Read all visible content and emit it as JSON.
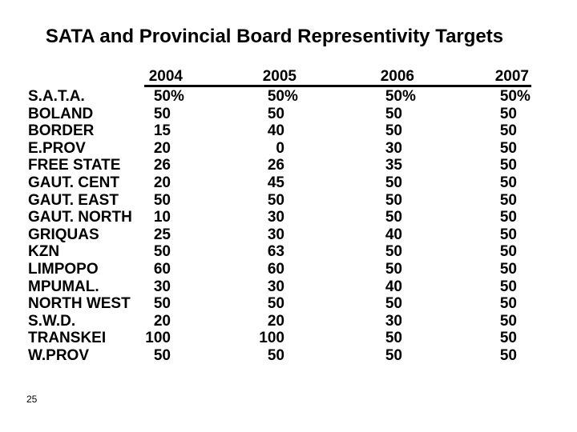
{
  "slide": {
    "title": "SATA and Provincial Board Representivity Targets",
    "page_number": "25"
  },
  "table": {
    "columns": [
      "2004",
      "2005",
      "2006",
      "2007"
    ],
    "rows": [
      {
        "label": "S.A.T.A.",
        "values": [
          "50%",
          "50%",
          "50%",
          "50%"
        ]
      },
      {
        "label": "BOLAND",
        "values": [
          "50",
          "50",
          "50",
          "50"
        ]
      },
      {
        "label": "BORDER",
        "values": [
          "15",
          "40",
          "50",
          "50"
        ]
      },
      {
        "label": "E.PROV",
        "values": [
          "20",
          "0",
          "30",
          "50"
        ]
      },
      {
        "label": "FREE STATE",
        "values": [
          "26",
          "26",
          "35",
          "50"
        ]
      },
      {
        "label": "GAUT. CENT",
        "values": [
          "20",
          "45",
          "50",
          "50"
        ]
      },
      {
        "label": "GAUT. EAST",
        "values": [
          "50",
          "50",
          "50",
          "50"
        ]
      },
      {
        "label": "GAUT. NORTH",
        "values": [
          "10",
          "30",
          "50",
          "50"
        ]
      },
      {
        "label": "GRIQUAS",
        "values": [
          "25",
          "30",
          "40",
          "50"
        ]
      },
      {
        "label": "KZN",
        "values": [
          "50",
          "63",
          "50",
          "50"
        ]
      },
      {
        "label": "LIMPOPO",
        "values": [
          "60",
          "60",
          "50",
          "50"
        ]
      },
      {
        "label": "MPUMAL.",
        "values": [
          "30",
          "30",
          "40",
          "50"
        ]
      },
      {
        "label": "NORTH WEST",
        "values": [
          "50",
          "50",
          "50",
          "50"
        ]
      },
      {
        "label": "S.W.D.",
        "values": [
          "20",
          "20",
          "30",
          "50"
        ]
      },
      {
        "label": "TRANSKEI",
        "values": [
          "100",
          "100",
          "50",
          "50"
        ]
      },
      {
        "label": "W.PROV",
        "values": [
          "50",
          "50",
          "50",
          "50"
        ]
      }
    ]
  },
  "colors": {
    "background": "#ffffff",
    "text": "#000000"
  }
}
